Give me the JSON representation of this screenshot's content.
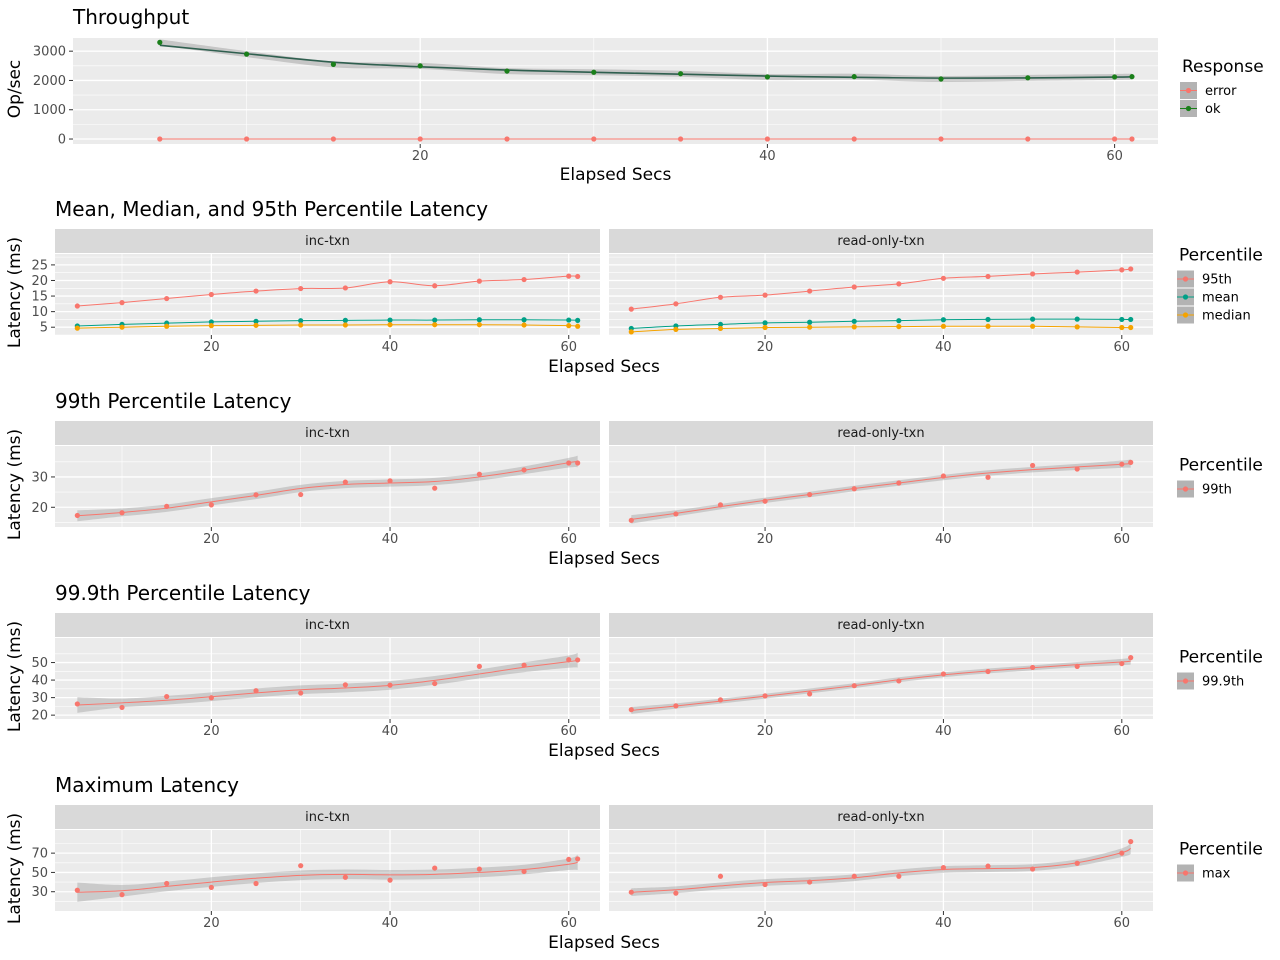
{
  "chart_data": [
    {
      "type": "line",
      "title": "Throughput",
      "xlabel": "Elapsed Secs",
      "ylabel": "Op/sec",
      "xlim": [
        0,
        62.5
      ],
      "ylim": [
        -170,
        3450
      ],
      "xticks": [
        20,
        40,
        60
      ],
      "yticks": [
        0,
        1000,
        2000,
        3000
      ],
      "grid": true,
      "smooth": false,
      "legend": {
        "title": "Response",
        "placement": "right"
      },
      "facets": [
        {
          "label": "",
          "series": [
            {
              "name": "error",
              "color": "#F8766D",
              "x": [
                5,
                10,
                15,
                20,
                25,
                30,
                35,
                40,
                45,
                50,
                55,
                60,
                61
              ],
              "y": [
                0,
                0,
                0,
                0,
                0,
                0,
                0,
                0,
                0,
                0,
                0,
                0,
                0
              ]
            },
            {
              "name": "ok",
              "color": "#1a7f1a",
              "x": [
                5,
                10,
                15,
                20,
                25,
                30,
                35,
                40,
                45,
                50,
                55,
                60,
                61
              ],
              "y": [
                3300,
                2900,
                2550,
                2500,
                2320,
                2280,
                2230,
                2120,
                2130,
                2050,
                2090,
                2120,
                2130
              ]
            }
          ]
        }
      ]
    },
    {
      "type": "line",
      "title": "Mean, Median, and 95th Percentile Latency",
      "xlabel": "Elapsed Secs",
      "ylabel": "Latency (ms)",
      "xlim": [
        2.5,
        63.5
      ],
      "ylim": [
        2.5,
        28.5
      ],
      "xticks": [
        20,
        40,
        60
      ],
      "yticks": [
        5,
        10,
        15,
        20,
        25
      ],
      "grid": true,
      "smooth": false,
      "legend": {
        "title": "Percentile",
        "placement": "right"
      },
      "facets": [
        {
          "label": "inc-txn",
          "series": [
            {
              "name": "95th",
              "color": "#F8766D",
              "x": [
                5,
                10,
                15,
                20,
                25,
                30,
                35,
                40,
                45,
                50,
                55,
                60,
                61
              ],
              "y": [
                11.8,
                12.9,
                14.2,
                15.5,
                16.6,
                17.4,
                17.6,
                19.6,
                18.3,
                19.8,
                20.3,
                21.4,
                21.3
              ]
            },
            {
              "name": "mean",
              "color": "#00A087",
              "x": [
                5,
                10,
                15,
                20,
                25,
                30,
                35,
                40,
                45,
                50,
                55,
                60,
                61
              ],
              "y": [
                5.4,
                5.9,
                6.3,
                6.7,
                6.9,
                7.1,
                7.2,
                7.3,
                7.3,
                7.4,
                7.4,
                7.3,
                7.2
              ]
            },
            {
              "name": "median",
              "color": "#F5A300",
              "x": [
                5,
                10,
                15,
                20,
                25,
                30,
                35,
                40,
                45,
                50,
                55,
                60,
                61
              ],
              "y": [
                4.7,
                5.0,
                5.3,
                5.5,
                5.6,
                5.7,
                5.7,
                5.8,
                5.8,
                5.8,
                5.7,
                5.5,
                5.3
              ]
            }
          ]
        },
        {
          "label": "read-only-txn",
          "series": [
            {
              "name": "95th",
              "color": "#F8766D",
              "x": [
                5,
                10,
                15,
                20,
                25,
                30,
                35,
                40,
                45,
                50,
                55,
                60,
                61
              ],
              "y": [
                10.8,
                12.5,
                14.6,
                15.3,
                16.6,
                17.9,
                18.9,
                20.7,
                21.3,
                22.1,
                22.7,
                23.4,
                23.7
              ]
            },
            {
              "name": "mean",
              "color": "#00A087",
              "x": [
                5,
                10,
                15,
                20,
                25,
                30,
                35,
                40,
                45,
                50,
                55,
                60,
                61
              ],
              "y": [
                4.6,
                5.4,
                5.9,
                6.4,
                6.6,
                6.9,
                7.1,
                7.4,
                7.5,
                7.6,
                7.6,
                7.5,
                7.5
              ]
            },
            {
              "name": "median",
              "color": "#F5A300",
              "x": [
                5,
                10,
                15,
                20,
                25,
                30,
                35,
                40,
                45,
                50,
                55,
                60,
                61
              ],
              "y": [
                3.5,
                4.3,
                4.6,
                4.9,
                5.0,
                5.1,
                5.2,
                5.3,
                5.3,
                5.3,
                5.1,
                4.9,
                4.9
              ]
            }
          ]
        }
      ]
    },
    {
      "type": "line",
      "title": "99th Percentile Latency",
      "xlabel": "Elapsed Secs",
      "ylabel": "Latency (ms)",
      "xlim": [
        2.5,
        63.5
      ],
      "ylim": [
        13.5,
        40.2
      ],
      "xticks": [
        20,
        40,
        60
      ],
      "yticks": [
        20,
        30
      ],
      "grid": true,
      "smooth": true,
      "legend": {
        "title": "Percentile",
        "placement": "right"
      },
      "facets": [
        {
          "label": "inc-txn",
          "series": [
            {
              "name": "99th",
              "color": "#F8766D",
              "x": [
                5,
                10,
                15,
                20,
                25,
                30,
                35,
                40,
                45,
                50,
                55,
                60,
                61
              ],
              "y": [
                17.3,
                18.2,
                20.3,
                20.8,
                24.1,
                24.2,
                28.3,
                28.7,
                26.3,
                30.9,
                32.3,
                34.6,
                34.6
              ],
              "fit": [
                17.2,
                18.3,
                19.7,
                21.8,
                23.9,
                26.2,
                27.5,
                28.0,
                28.5,
                30.0,
                32.2,
                34.7,
                35.1
              ],
              "band": [
                1.8,
                1.3,
                1.2,
                1.2,
                1.2,
                1.2,
                1.2,
                1.2,
                1.2,
                1.2,
                1.3,
                1.6,
                1.9
              ]
            }
          ]
        },
        {
          "label": "read-only-txn",
          "series": [
            {
              "name": "99th",
              "color": "#F8766D",
              "x": [
                5,
                10,
                15,
                20,
                25,
                30,
                35,
                40,
                45,
                50,
                55,
                60,
                61
              ],
              "y": [
                15.7,
                17.8,
                20.8,
                22.0,
                24.2,
                26.1,
                28.0,
                30.3,
                29.9,
                33.8,
                32.6,
                34.2,
                34.8
              ],
              "fit": [
                16.0,
                18.0,
                20.2,
                22.3,
                24.2,
                26.2,
                28.0,
                29.8,
                31.3,
                32.4,
                33.3,
                34.2,
                34.4
              ],
              "band": [
                1.4,
                1.0,
                0.9,
                0.9,
                0.9,
                0.9,
                0.9,
                0.9,
                0.9,
                0.9,
                1.0,
                1.2,
                1.4
              ]
            }
          ]
        }
      ]
    },
    {
      "type": "line",
      "title": "99.9th Percentile Latency",
      "xlabel": "Elapsed Secs",
      "ylabel": "Latency (ms)",
      "xlim": [
        2.5,
        63.5
      ],
      "ylim": [
        17.8,
        64.0
      ],
      "xticks": [
        20,
        40,
        60
      ],
      "yticks": [
        20,
        30,
        40,
        50
      ],
      "grid": true,
      "smooth": true,
      "legend": {
        "title": "Percentile",
        "placement": "right"
      },
      "facets": [
        {
          "label": "inc-txn",
          "series": [
            {
              "name": "99.9th",
              "color": "#F8766D",
              "x": [
                5,
                10,
                15,
                20,
                25,
                30,
                35,
                40,
                45,
                50,
                55,
                60,
                61
              ],
              "y": [
                26.4,
                24.4,
                30.6,
                29.9,
                33.9,
                32.6,
                37.3,
                37.1,
                38.0,
                47.8,
                48.5,
                51.6,
                51.5
              ],
              "fit": [
                25.8,
                27.0,
                28.5,
                30.5,
                32.7,
                34.5,
                35.5,
                37.0,
                39.8,
                43.5,
                47.3,
                50.5,
                51.3
              ],
              "band": [
                4.5,
                2.5,
                2.5,
                2.5,
                2.5,
                2.5,
                2.5,
                2.5,
                2.5,
                2.5,
                2.8,
                3.5,
                4.2
              ]
            }
          ]
        },
        {
          "label": "read-only-txn",
          "series": [
            {
              "name": "99.9th",
              "color": "#F8766D",
              "x": [
                5,
                10,
                15,
                20,
                25,
                30,
                35,
                40,
                45,
                50,
                55,
                60,
                61
              ],
              "y": [
                23.1,
                25.3,
                28.7,
                31.0,
                32.1,
                36.8,
                39.5,
                43.5,
                44.9,
                47.2,
                47.8,
                49.4,
                52.8
              ],
              "fit": [
                22.7,
                25.2,
                28.0,
                30.8,
                33.8,
                36.8,
                40.2,
                43.0,
                45.2,
                47.0,
                48.8,
                50.3,
                50.8
              ],
              "band": [
                2.0,
                1.5,
                1.4,
                1.4,
                1.4,
                1.4,
                1.4,
                1.4,
                1.4,
                1.4,
                1.5,
                1.8,
                2.0
              ]
            }
          ]
        }
      ]
    },
    {
      "type": "line",
      "title": "Maximum Latency",
      "xlabel": "Elapsed Secs",
      "ylabel": "Latency (ms)",
      "xlim": [
        2.5,
        63.5
      ],
      "ylim": [
        10.0,
        94.0
      ],
      "xticks": [
        20,
        40,
        60
      ],
      "yticks": [
        30,
        50,
        70
      ],
      "grid": true,
      "smooth": true,
      "legend": {
        "title": "Percentile",
        "placement": "right"
      },
      "facets": [
        {
          "label": "inc-txn",
          "series": [
            {
              "name": "max",
              "color": "#F8766D",
              "x": [
                5,
                10,
                15,
                20,
                25,
                30,
                35,
                40,
                45,
                50,
                55,
                60,
                61
              ],
              "y": [
                31.5,
                27.0,
                38.5,
                34.5,
                38.5,
                57.0,
                45.0,
                42.0,
                54.5,
                53.5,
                51.0,
                63.5,
                64.0
              ],
              "fit": [
                29.5,
                31.0,
                35.5,
                40.0,
                44.0,
                47.0,
                48.0,
                47.5,
                48.0,
                50.0,
                53.0,
                58.5,
                60.5
              ],
              "band": [
                10.0,
                6.0,
                5.0,
                5.0,
                5.0,
                5.0,
                5.0,
                5.0,
                5.0,
                5.0,
                5.0,
                6.0,
                8.0
              ]
            }
          ]
        },
        {
          "label": "read-only-txn",
          "series": [
            {
              "name": "max",
              "color": "#F8766D",
              "x": [
                5,
                10,
                15,
                20,
                25,
                30,
                35,
                40,
                45,
                50,
                55,
                60,
                61
              ],
              "y": [
                29.5,
                28.5,
                46.0,
                37.5,
                40.0,
                46.0,
                46.0,
                55.0,
                56.5,
                53.5,
                59.5,
                70.0,
                82.0
              ],
              "fit": [
                29.5,
                32.0,
                36.0,
                39.5,
                41.5,
                44.5,
                49.5,
                53.0,
                54.0,
                55.0,
                60.0,
                70.5,
                75.0
              ],
              "band": [
                4.0,
                3.5,
                3.5,
                3.5,
                3.5,
                3.5,
                3.5,
                3.5,
                3.5,
                3.5,
                3.5,
                4.5,
                6.0
              ]
            }
          ]
        }
      ]
    }
  ]
}
